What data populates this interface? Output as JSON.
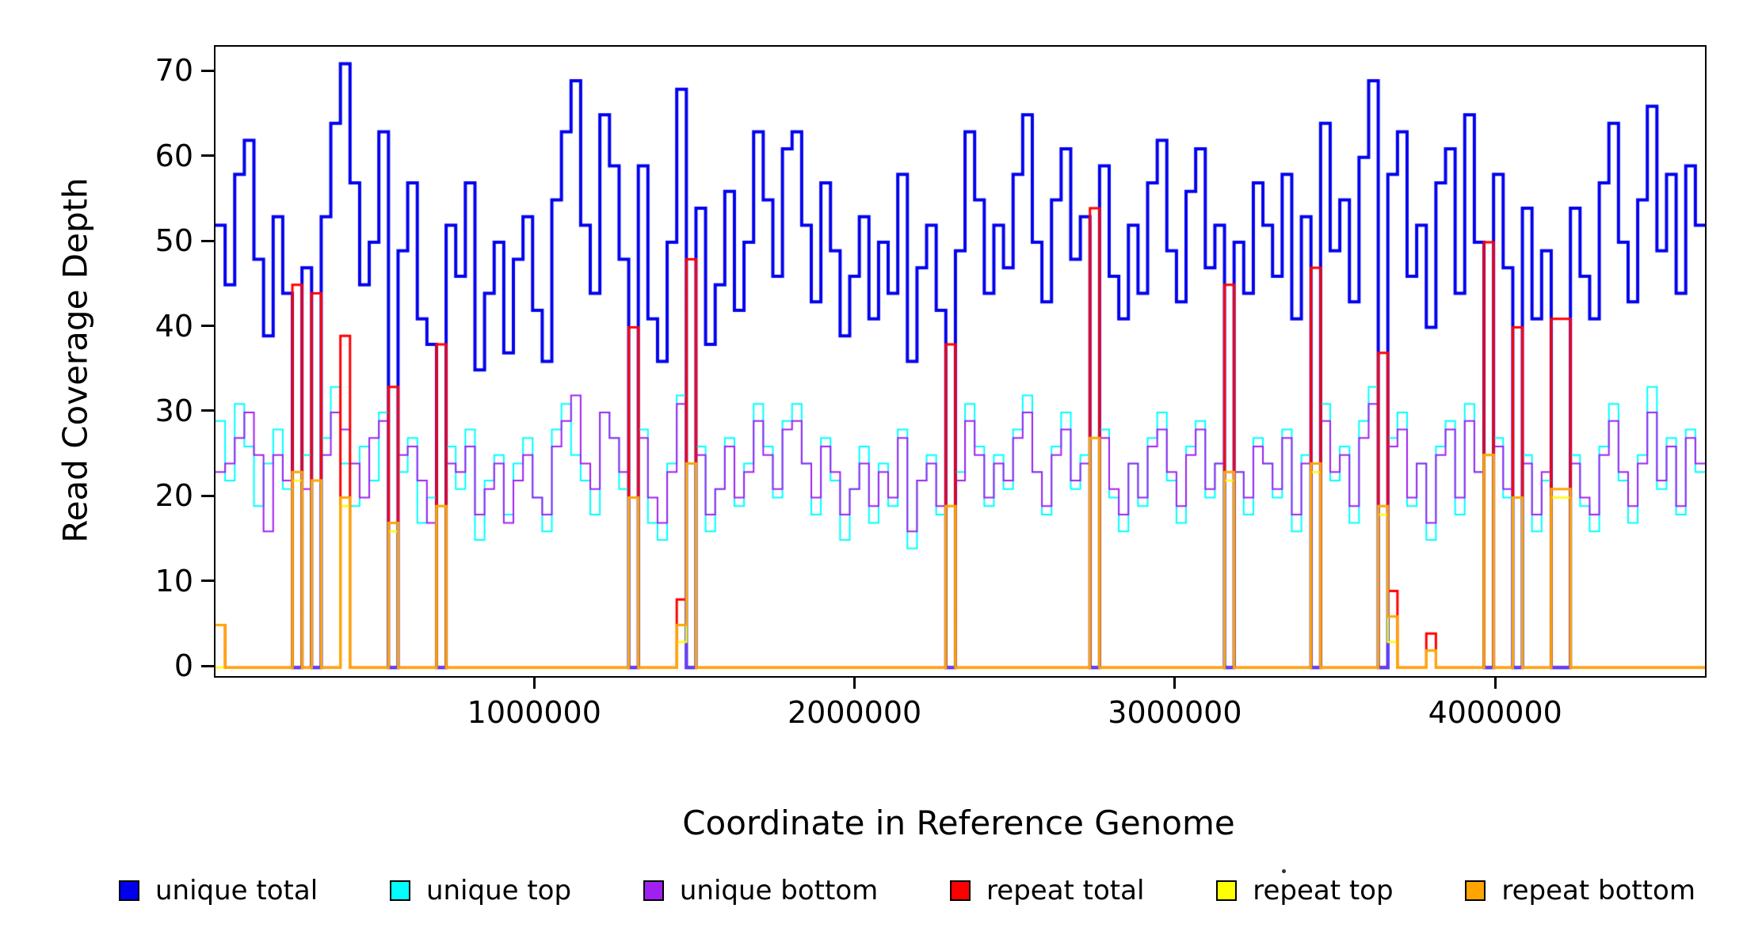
{
  "chart_data": {
    "type": "line",
    "step": true,
    "title": "",
    "xlabel": "Coordinate in Reference Genome",
    "ylabel": "Read Coverage Depth",
    "xlim": [
      0,
      4650000
    ],
    "ylim": [
      -1,
      73
    ],
    "grid": false,
    "legend_position": "bottom",
    "bin_size": 30000,
    "n_bins": 155,
    "x_ticks": [
      {
        "value": 1000000,
        "label": "1000000"
      },
      {
        "value": 2000000,
        "label": "2000000"
      },
      {
        "value": 3000000,
        "label": "3000000"
      },
      {
        "value": 4000000,
        "label": "4000000"
      }
    ],
    "y_ticks": [
      {
        "value": 0,
        "label": "0"
      },
      {
        "value": 10,
        "label": "10"
      },
      {
        "value": 20,
        "label": "20"
      },
      {
        "value": 30,
        "label": "30"
      },
      {
        "value": 40,
        "label": "40"
      },
      {
        "value": 50,
        "label": "50"
      },
      {
        "value": 60,
        "label": "60"
      },
      {
        "value": 70,
        "label": "70"
      }
    ],
    "series": [
      {
        "name": "unique-total",
        "label": "unique total",
        "color": "#0000EE",
        "line_width": 4,
        "values": [
          52,
          45,
          58,
          62,
          48,
          39,
          53,
          44,
          0,
          47,
          0,
          53,
          64,
          71,
          57,
          45,
          50,
          63,
          0,
          49,
          57,
          41,
          38,
          0,
          52,
          46,
          57,
          35,
          44,
          50,
          37,
          48,
          53,
          42,
          36,
          55,
          63,
          69,
          52,
          44,
          65,
          59,
          48,
          0,
          59,
          41,
          36,
          50,
          68,
          0,
          54,
          38,
          45,
          56,
          42,
          50,
          63,
          55,
          46,
          61,
          63,
          52,
          43,
          57,
          49,
          39,
          46,
          53,
          41,
          50,
          44,
          58,
          36,
          47,
          52,
          42,
          0,
          49,
          63,
          55,
          44,
          52,
          47,
          58,
          65,
          50,
          43,
          55,
          61,
          48,
          53,
          0,
          59,
          46,
          41,
          52,
          44,
          57,
          62,
          49,
          43,
          56,
          61,
          47,
          52,
          0,
          50,
          44,
          57,
          52,
          46,
          58,
          41,
          53,
          0,
          64,
          49,
          55,
          43,
          60,
          69,
          0,
          58,
          63,
          46,
          52,
          40,
          57,
          61,
          44,
          65,
          50,
          0,
          58,
          47,
          0,
          54,
          41,
          49,
          0,
          0,
          54,
          46,
          41,
          57,
          64,
          50,
          43,
          55,
          66,
          49,
          58,
          44,
          59,
          52
        ]
      },
      {
        "name": "unique-top",
        "label": "unique top",
        "color": "#00FFFF",
        "line_width": 2,
        "values": [
          29,
          22,
          31,
          26,
          19,
          24,
          28,
          21,
          0,
          25,
          0,
          27,
          33,
          24,
          19,
          26,
          22,
          30,
          0,
          23,
          27,
          17,
          20,
          0,
          26,
          21,
          28,
          15,
          22,
          25,
          18,
          24,
          27,
          20,
          16,
          28,
          31,
          25,
          22,
          18,
          30,
          27,
          21,
          0,
          28,
          17,
          15,
          24,
          32,
          0,
          26,
          16,
          21,
          27,
          19,
          24,
          31,
          26,
          20,
          29,
          31,
          24,
          18,
          27,
          22,
          15,
          21,
          26,
          17,
          24,
          19,
          28,
          14,
          22,
          25,
          18,
          0,
          23,
          31,
          26,
          19,
          25,
          21,
          28,
          32,
          23,
          18,
          26,
          30,
          21,
          25,
          0,
          28,
          20,
          16,
          24,
          19,
          27,
          30,
          22,
          17,
          26,
          29,
          20,
          24,
          0,
          23,
          18,
          27,
          24,
          20,
          28,
          16,
          25,
          0,
          31,
          22,
          26,
          17,
          29,
          33,
          0,
          27,
          30,
          19,
          24,
          15,
          26,
          29,
          18,
          31,
          23,
          0,
          27,
          20,
          0,
          25,
          16,
          22,
          0,
          0,
          25,
          19,
          16,
          26,
          31,
          22,
          17,
          25,
          33,
          21,
          27,
          18,
          28,
          23
        ]
      },
      {
        "name": "unique-bottom",
        "label": "unique bottom",
        "color": "#A020F0",
        "line_width": 2,
        "values": [
          23,
          24,
          27,
          30,
          25,
          16,
          25,
          22,
          0,
          21,
          0,
          25,
          30,
          28,
          24,
          20,
          27,
          29,
          0,
          25,
          26,
          22,
          17,
          0,
          24,
          23,
          26,
          18,
          21,
          24,
          17,
          22,
          25,
          20,
          18,
          26,
          29,
          32,
          24,
          21,
          30,
          27,
          23,
          0,
          27,
          20,
          17,
          23,
          31,
          0,
          25,
          18,
          21,
          26,
          20,
          23,
          29,
          25,
          21,
          28,
          29,
          24,
          20,
          26,
          23,
          18,
          21,
          24,
          19,
          23,
          20,
          27,
          16,
          22,
          24,
          19,
          0,
          22,
          29,
          25,
          20,
          24,
          22,
          27,
          30,
          23,
          19,
          25,
          28,
          22,
          24,
          0,
          27,
          21,
          18,
          24,
          20,
          26,
          28,
          23,
          19,
          25,
          28,
          21,
          24,
          0,
          23,
          20,
          26,
          24,
          21,
          27,
          18,
          24,
          0,
          29,
          23,
          25,
          19,
          27,
          31,
          0,
          26,
          28,
          20,
          24,
          17,
          25,
          28,
          20,
          29,
          23,
          0,
          26,
          21,
          0,
          24,
          18,
          23,
          0,
          0,
          24,
          20,
          18,
          25,
          29,
          23,
          19,
          24,
          30,
          22,
          26,
          19,
          27,
          24
        ]
      },
      {
        "name": "repeat-total",
        "label": "repeat total",
        "color": "#FF0000",
        "line_width": 3,
        "default": 0,
        "values_sparse": {
          "0": 5,
          "8": 45,
          "10": 44,
          "13": 39,
          "18": 33,
          "23": 38,
          "43": 40,
          "48": 8,
          "49": 48,
          "76": 38,
          "91": 54,
          "105": 45,
          "114": 47,
          "121": 37,
          "122": 9,
          "126": 4,
          "132": 50,
          "135": 40,
          "139": 41,
          "140": 41
        }
      },
      {
        "name": "repeat-top",
        "label": "repeat top",
        "color": "#FFFF00",
        "line_width": 2.5,
        "default": 0,
        "values_sparse": {
          "8": 22,
          "10": 22,
          "13": 19,
          "18": 16,
          "23": 19,
          "43": 20,
          "48": 3,
          "49": 24,
          "76": 19,
          "91": 27,
          "105": 22,
          "114": 23,
          "121": 18,
          "122": 3,
          "126": 2,
          "132": 25,
          "135": 20,
          "139": 20,
          "140": 20
        }
      },
      {
        "name": "repeat-bottom",
        "label": "repeat bottom",
        "color": "#FFA500",
        "line_width": 3,
        "default": 0,
        "values_sparse": {
          "0": 5,
          "8": 23,
          "10": 22,
          "13": 20,
          "18": 17,
          "23": 19,
          "43": 20,
          "48": 5,
          "49": 24,
          "76": 19,
          "91": 27,
          "105": 23,
          "114": 24,
          "121": 19,
          "122": 6,
          "126": 2,
          "132": 25,
          "135": 20,
          "139": 21,
          "140": 21
        }
      }
    ]
  },
  "colors": {
    "axis": "#000000",
    "background": "#FFFFFF"
  }
}
